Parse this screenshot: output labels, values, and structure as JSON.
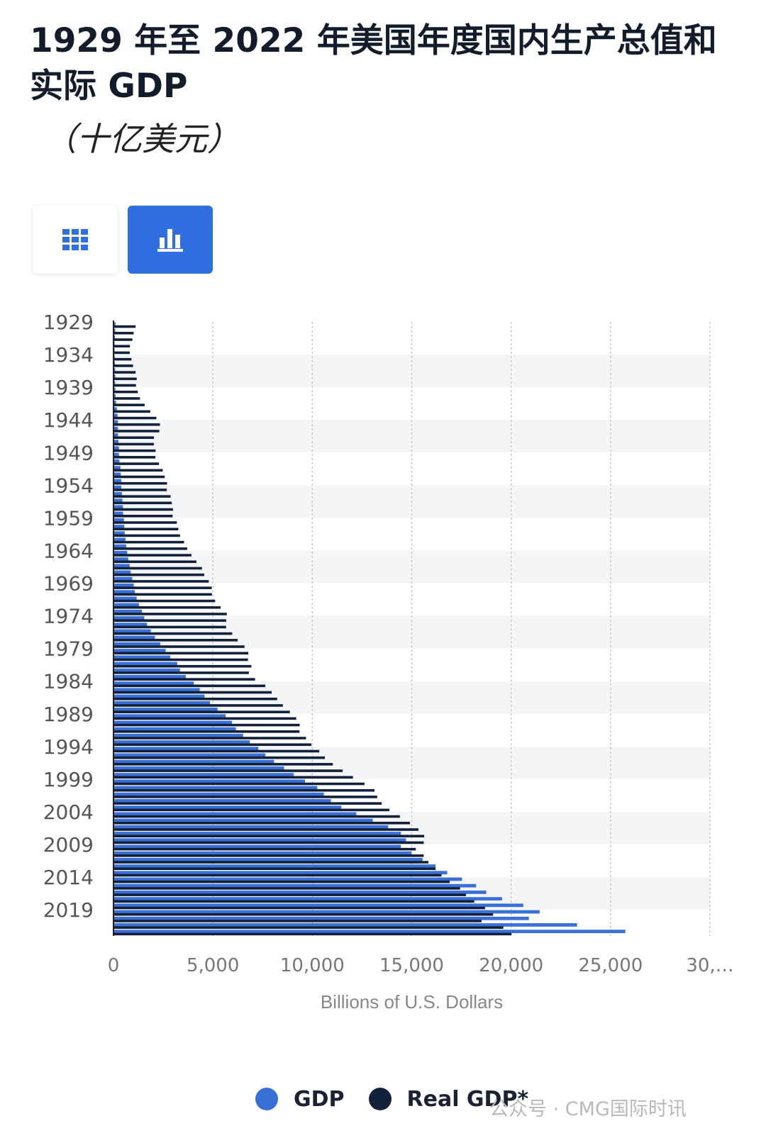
{
  "title": "1929 年至 2022 年美国年度国内生产总值和实际 GDP",
  "subtitle": "（十亿美元）",
  "buttons": {
    "table_icon": "grid-icon",
    "chart_icon": "bar-chart-icon"
  },
  "watermark": "公众号 · CMG国际时讯",
  "colors": {
    "gdp": "#3a6fd8",
    "real_gdp": "#13203a",
    "accent": "#2f6fe0",
    "band": "#f4f5f7",
    "grid": "#c9c9c9"
  },
  "chart_data": {
    "type": "bar",
    "orientation": "horizontal",
    "xlabel": "Billions of U.S. Dollars",
    "xlim": [
      0,
      30000
    ],
    "xticks": [
      "0",
      "5,000",
      "10,000",
      "15,000",
      "20,000",
      "25,000",
      "30,…"
    ],
    "ytick_labels": [
      "1929",
      "1934",
      "1939",
      "1944",
      "1949",
      "1954",
      "1959",
      "1964",
      "1969",
      "1974",
      "1979",
      "1984",
      "1989",
      "1994",
      "1999",
      "2004",
      "2009",
      "2014",
      "2019"
    ],
    "categories": [
      1929,
      1930,
      1931,
      1932,
      1933,
      1934,
      1935,
      1936,
      1937,
      1938,
      1939,
      1940,
      1941,
      1942,
      1943,
      1944,
      1945,
      1946,
      1947,
      1948,
      1949,
      1950,
      1951,
      1952,
      1953,
      1954,
      1955,
      1956,
      1957,
      1958,
      1959,
      1960,
      1961,
      1962,
      1963,
      1964,
      1965,
      1966,
      1967,
      1968,
      1969,
      1970,
      1971,
      1972,
      1973,
      1974,
      1975,
      1976,
      1977,
      1978,
      1979,
      1980,
      1981,
      1982,
      1983,
      1984,
      1985,
      1986,
      1987,
      1988,
      1989,
      1990,
      1991,
      1992,
      1993,
      1994,
      1995,
      1996,
      1997,
      1998,
      1999,
      2000,
      2001,
      2002,
      2003,
      2004,
      2005,
      2006,
      2007,
      2008,
      2009,
      2010,
      2011,
      2012,
      2013,
      2014,
      2015,
      2016,
      2017,
      2018,
      2019,
      2020,
      2021,
      2022
    ],
    "grid": true,
    "legend_position": "bottom",
    "series": [
      {
        "name": "GDP",
        "values": [
          105,
          92,
          78,
          60,
          57,
          67,
          74,
          85,
          93,
          87,
          93,
          103,
          129,
          166,
          203,
          225,
          228,
          227,
          248,
          274,
          272,
          300,
          347,
          367,
          389,
          391,
          425,
          449,
          474,
          481,
          522,
          543,
          563,
          605,
          638,
          686,
          744,
          815,
          862,
          943,
          1020,
          1073,
          1165,
          1280,
          1429,
          1546,
          1685,
          1873,
          2082,
          2352,
          2627,
          2857,
          3207,
          3343,
          3634,
          4038,
          4339,
          4580,
          4855,
          5236,
          5642,
          5963,
          6158,
          6520,
          6859,
          7287,
          7640,
          8073,
          8578,
          9063,
          9631,
          10251,
          10582,
          10936,
          11458,
          12214,
          13037,
          13815,
          14452,
          14713,
          14449,
          14992,
          15543,
          16197,
          16785,
          17527,
          18238,
          18745,
          19543,
          20612,
          21433,
          20894,
          23315,
          25744
        ]
      },
      {
        "name": "Real GDP*",
        "values": [
          1110,
          1016,
          950,
          827,
          817,
          905,
          985,
          1113,
          1169,
          1131,
          1222,
          1330,
          1566,
          1849,
          2157,
          2336,
          2306,
          2037,
          2034,
          2119,
          2108,
          2291,
          2475,
          2577,
          2695,
          2680,
          2873,
          2931,
          2993,
          2973,
          3186,
          3262,
          3345,
          3550,
          3705,
          3918,
          4171,
          4450,
          4565,
          4792,
          4942,
          4951,
          5115,
          5387,
          5700,
          5669,
          5662,
          5973,
          6244,
          6590,
          6779,
          6763,
          6935,
          6810,
          7122,
          7637,
          7955,
          8233,
          8520,
          8870,
          9192,
          9366,
          9355,
          9684,
          9952,
          10352,
          10631,
          11032,
          11526,
          12045,
          12624,
          13131,
          13263,
          13489,
          13879,
          14406,
          14913,
          15338,
          15626,
          15605,
          15208,
          15599,
          15841,
          16197,
          16495,
          16912,
          17432,
          17730,
          18144,
          18688,
          19092,
          18510,
          19610,
          20014
        ]
      }
    ]
  }
}
